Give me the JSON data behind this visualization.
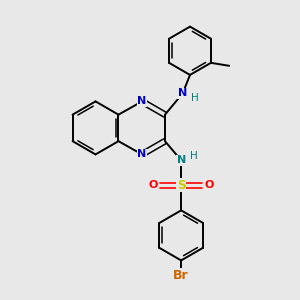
{
  "background_color": "#e8e8e8",
  "atom_colors": {
    "C": "#000000",
    "N_blue": "#0000cc",
    "N_teal": "#008080",
    "O": "#ff0000",
    "S": "#cccc00",
    "Br": "#cc6600",
    "H": "#008080"
  },
  "figsize": [
    3.0,
    3.0
  ],
  "dpi": 100,
  "xlim": [
    0,
    10
  ],
  "ylim": [
    0,
    10
  ]
}
